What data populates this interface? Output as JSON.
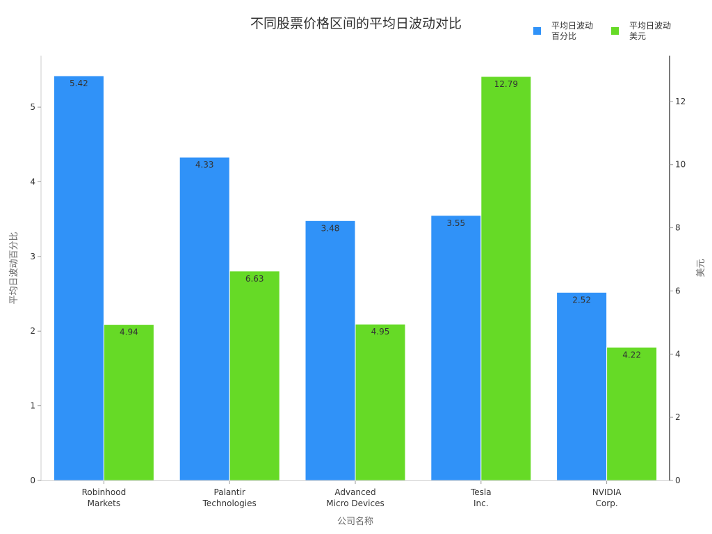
{
  "title": "不同股票价格区间的平均日波动对比",
  "legend": [
    {
      "label": "平均日波动\n百分比",
      "color": "#3092F8"
    },
    {
      "label": "平均日波动\n美元",
      "color": "#66DA26"
    }
  ],
  "chart_data": {
    "type": "bar",
    "title": "不同股票价格区间的平均日波动对比",
    "xlabel": "公司名称",
    "ylabel": "平均日波动百分比",
    "ylabel_right": "美元",
    "categories": [
      "Robinhood\nMarkets",
      "Palantir\nTechnologies",
      "Advanced\nMicro Devices",
      "Tesla\nInc.",
      "NVIDIA\nCorp."
    ],
    "series": [
      {
        "name": "平均日波动百分比",
        "axis": "left",
        "color": "#3092F8",
        "values": [
          5.42,
          4.33,
          3.48,
          3.55,
          2.52
        ]
      },
      {
        "name": "平均日波动美元",
        "axis": "right",
        "color": "#66DA26",
        "values": [
          4.94,
          6.63,
          4.95,
          12.79,
          4.22
        ]
      }
    ],
    "ylim": [
      0,
      5.69
    ],
    "yticks": [
      0,
      1,
      2,
      3,
      4,
      5
    ],
    "ylim_right": [
      0,
      13.45
    ],
    "yticks_right": [
      0,
      2,
      4,
      6,
      8,
      10,
      12
    ],
    "grid": false,
    "legend_position": "top-right",
    "data_labels": true
  }
}
